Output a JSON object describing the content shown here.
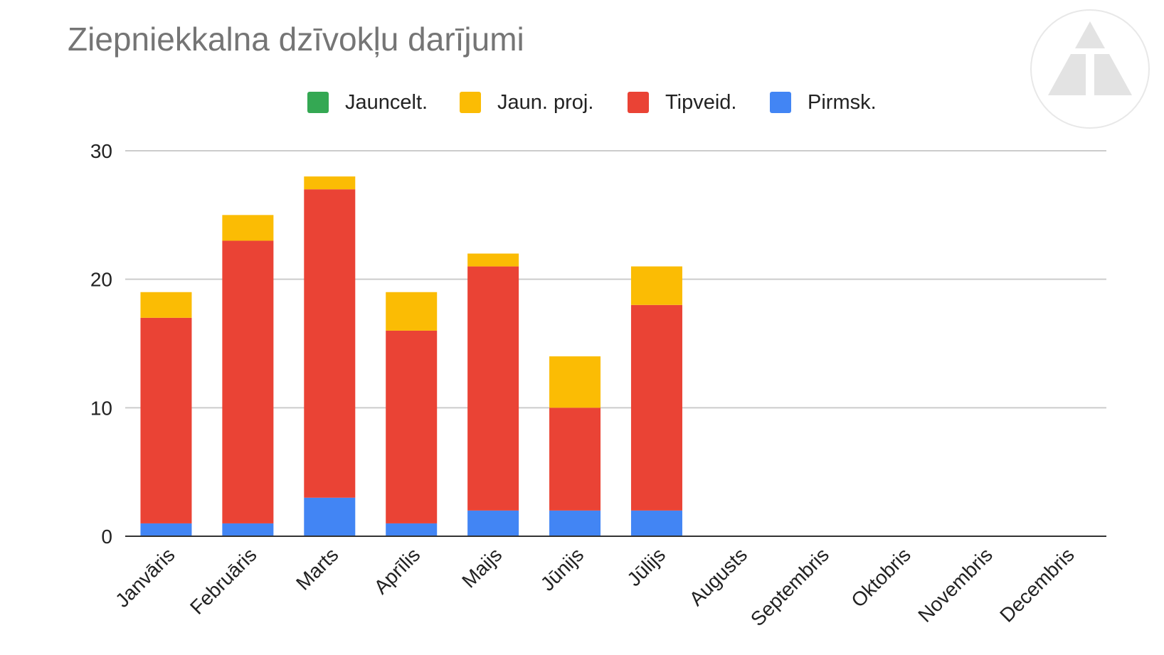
{
  "chart_data": {
    "type": "bar",
    "stacked": true,
    "title": "Ziepniekkalna dzīvokļu darījumi",
    "xlabel": "",
    "ylabel": "",
    "ylim": [
      0,
      30
    ],
    "yticks": [
      0,
      10,
      20,
      30
    ],
    "grid": true,
    "legend_position": "top",
    "categories": [
      "Janvāris",
      "Februāris",
      "Marts",
      "Aprīlis",
      "Maijs",
      "Jūnijs",
      "Jūlijs",
      "Augusts",
      "Septembris",
      "Oktobris",
      "Novembris",
      "Decembris"
    ],
    "series": [
      {
        "name": "Jauncelt.",
        "color": "#34a853",
        "values": [
          0,
          0,
          0,
          0,
          0,
          0,
          0,
          0,
          0,
          0,
          0,
          0
        ]
      },
      {
        "name": "Jaun. proj.",
        "color": "#fbbc04",
        "values": [
          2,
          2,
          1,
          3,
          1,
          4,
          3,
          0,
          0,
          0,
          0,
          0
        ]
      },
      {
        "name": "Tipveid.",
        "color": "#ea4335",
        "values": [
          16,
          22,
          24,
          15,
          19,
          8,
          16,
          0,
          0,
          0,
          0,
          0
        ]
      },
      {
        "name": "Pirmsk.",
        "color": "#4285f4",
        "values": [
          1,
          1,
          3,
          1,
          2,
          2,
          2,
          0,
          0,
          0,
          0,
          0
        ]
      }
    ],
    "stack_order_bottom_to_top": [
      "Pirmsk.",
      "Tipveid.",
      "Jaun. proj.",
      "Jauncelt."
    ]
  },
  "colors": {
    "title": "#757575",
    "grid": "#cccccc",
    "baseline": "#333333",
    "text": "#222222"
  },
  "watermark": {
    "icon": "logo-triangle-icon"
  }
}
